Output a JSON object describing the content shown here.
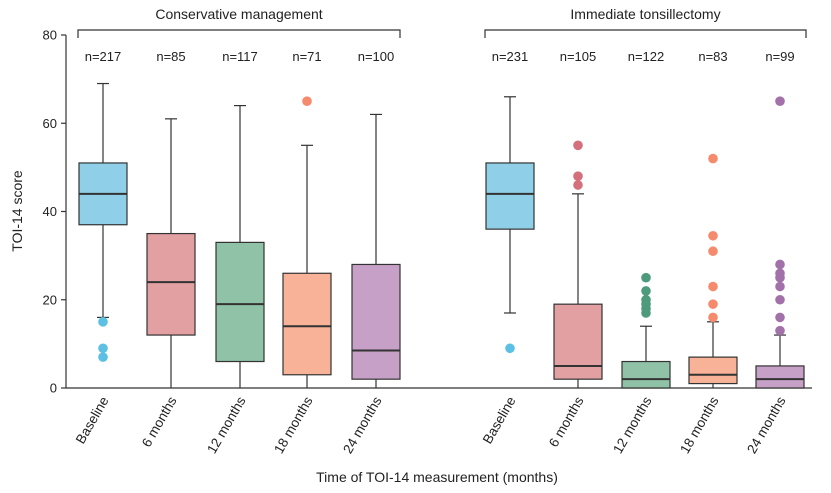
{
  "chart_data": {
    "type": "box",
    "xlabel": "Time of TOI-14 measurement (months)",
    "ylabel": "TOI-14 score",
    "ylim": [
      0,
      80
    ],
    "yticks": [
      0,
      20,
      40,
      60,
      80
    ],
    "grid": false,
    "categories": [
      "Baseline",
      "6 months",
      "12 months",
      "18 months",
      "24 months"
    ],
    "colors": [
      "#8fd0e8",
      "#e3a0a3",
      "#8fc2a6",
      "#f7b298",
      "#c7a0c7"
    ],
    "outlier_colors": [
      "#5cc0e4",
      "#d4707c",
      "#4e9a7c",
      "#f58a6c",
      "#a371a9"
    ],
    "groups": [
      {
        "name": "Conservative management",
        "boxes": [
          {
            "category": "Baseline",
            "n_label": "n=217",
            "whisker_low": 16,
            "q1": 37,
            "median": 44,
            "q3": 51,
            "whisker_high": 69,
            "outliers": [
              15,
              9,
              7
            ]
          },
          {
            "category": "6 months",
            "n_label": "n=85",
            "whisker_low": 0,
            "q1": 12,
            "median": 24,
            "q3": 35,
            "whisker_high": 61,
            "outliers": []
          },
          {
            "category": "12 months",
            "n_label": "n=117",
            "whisker_low": 0,
            "q1": 6,
            "median": 19,
            "q3": 33,
            "whisker_high": 64,
            "outliers": []
          },
          {
            "category": "18 months",
            "n_label": "n=71",
            "whisker_low": 0,
            "q1": 3,
            "median": 14,
            "q3": 26,
            "whisker_high": 55,
            "outliers": [
              65
            ]
          },
          {
            "category": "24 months",
            "n_label": "n=100",
            "whisker_low": 0,
            "q1": 2,
            "median": 8.5,
            "q3": 28,
            "whisker_high": 62,
            "outliers": []
          }
        ]
      },
      {
        "name": "Immediate tonsillectomy",
        "boxes": [
          {
            "category": "Baseline",
            "n_label": "n=231",
            "whisker_low": 17,
            "q1": 36,
            "median": 44,
            "q3": 51,
            "whisker_high": 66,
            "outliers": [
              9
            ]
          },
          {
            "category": "6 months",
            "n_label": "n=105",
            "whisker_low": 0,
            "q1": 2,
            "median": 5,
            "q3": 19,
            "whisker_high": 44,
            "outliers": [
              55,
              48,
              46
            ]
          },
          {
            "category": "12 months",
            "n_label": "n=122",
            "whisker_low": 0,
            "q1": 0,
            "median": 2,
            "q3": 6,
            "whisker_high": 14,
            "outliers": [
              25,
              22,
              20,
              19,
              18,
              17
            ]
          },
          {
            "category": "18 months",
            "n_label": "n=83",
            "whisker_low": 0,
            "q1": 1,
            "median": 3,
            "q3": 7,
            "whisker_high": 15,
            "outliers": [
              52,
              34.5,
              31,
              23,
              19,
              16
            ]
          },
          {
            "category": "24 months",
            "n_label": "n=99",
            "whisker_low": 0,
            "q1": 0,
            "median": 2,
            "q3": 5,
            "whisker_high": 12,
            "outliers": [
              65,
              28,
              26,
              25,
              23,
              20,
              16,
              13
            ]
          }
        ]
      }
    ]
  }
}
